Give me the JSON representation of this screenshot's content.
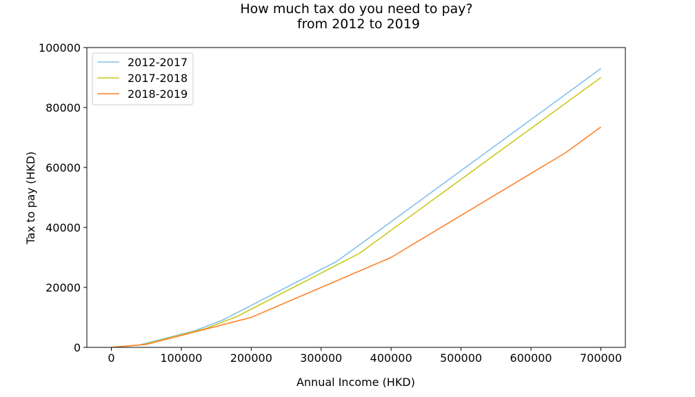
{
  "chart_data": {
    "type": "line",
    "title_line1": "How much tax do you need to pay?",
    "title_line2": "from 2012 to 2019",
    "xlabel": "Annual Income (HKD)",
    "ylabel": "Tax to pay (HKD)",
    "xlim": [
      -35000,
      735000
    ],
    "ylim": [
      0,
      100000
    ],
    "xticks": [
      0,
      100000,
      200000,
      300000,
      400000,
      500000,
      600000,
      700000
    ],
    "xtick_labels": [
      "0",
      "100000",
      "200000",
      "300000",
      "400000",
      "500000",
      "600000",
      "700000"
    ],
    "yticks": [
      0,
      20000,
      40000,
      60000,
      80000,
      100000
    ],
    "ytick_labels": [
      "0",
      "20000",
      "40000",
      "60000",
      "80000",
      "100000"
    ],
    "grid": false,
    "legend_position": "top-left",
    "series": [
      {
        "name": "2012-2017",
        "color": "#7fbfef",
        "x": [
          0,
          40000,
          120000,
          160000,
          322500,
          700000
        ],
        "y": [
          0,
          800,
          5600,
          9200,
          28700,
          93000
        ]
      },
      {
        "name": "2017-2018",
        "color": "#c8c81a",
        "x": [
          0,
          45000,
          135000,
          180000,
          355000,
          700000
        ],
        "y": [
          0,
          900,
          6300,
          10350,
          31400,
          90000
        ]
      },
      {
        "name": "2018-2019",
        "color": "#ff7f27",
        "x": [
          0,
          50000,
          150000,
          200000,
          400000,
          650000,
          700000
        ],
        "y": [
          0,
          1000,
          7000,
          10000,
          30000,
          65000,
          73500
        ]
      }
    ]
  }
}
